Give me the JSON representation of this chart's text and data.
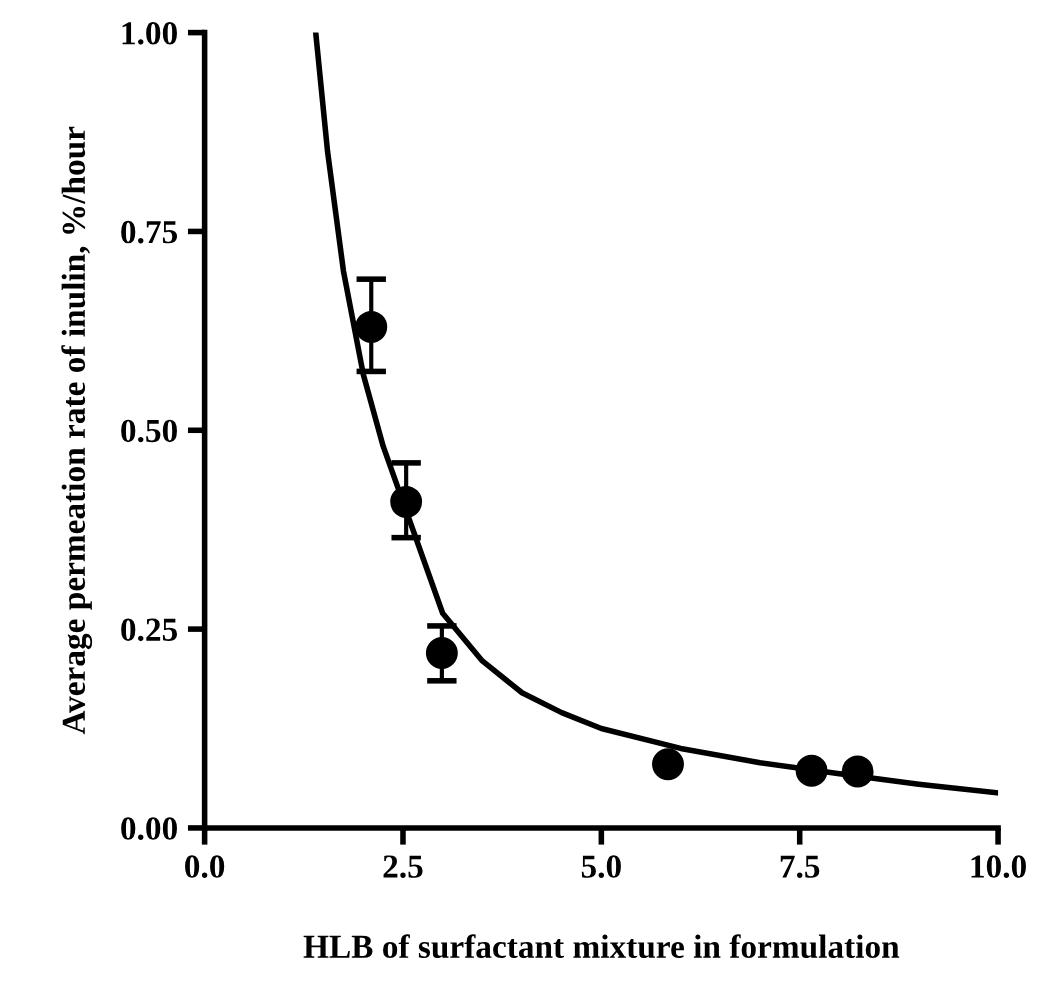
{
  "chart_data": {
    "type": "scatter",
    "xlabel": "HLB of surfactant mixture in formulation",
    "ylabel": "Average permeation rate of inulin, %/hour",
    "xlim": [
      0,
      10
    ],
    "ylim": [
      0,
      1
    ],
    "xticks": [
      {
        "value": 0,
        "label": "0.0"
      },
      {
        "value": 2.5,
        "label": "2.5"
      },
      {
        "value": 5,
        "label": "5.0"
      },
      {
        "value": 7.5,
        "label": "7.5"
      },
      {
        "value": 10,
        "label": "10.0"
      }
    ],
    "yticks": [
      {
        "value": 0,
        "label": "0.00"
      },
      {
        "value": 0.25,
        "label": "0.25"
      },
      {
        "value": 0.5,
        "label": "0.50"
      },
      {
        "value": 0.75,
        "label": "0.75"
      },
      {
        "value": 1,
        "label": "1.00"
      }
    ],
    "grid": false,
    "marker": "circle",
    "series": [
      {
        "color": "#000000",
        "x": [
          2.1,
          2.54,
          2.99,
          5.84,
          7.65,
          8.23
        ],
        "values": [
          0.63,
          0.41,
          0.22,
          0.08,
          0.072,
          0.071
        ],
        "errors": [
          [
            0.574,
            0.69
          ],
          [
            0.365,
            0.459
          ],
          [
            0.185,
            0.254
          ],
          null,
          null,
          null
        ]
      },
      {
        "type": "line",
        "color": "#000000",
        "marker": "none",
        "line_style": "solid",
        "x": [
          1.4,
          1.55,
          1.75,
          2.0,
          2.25,
          2.5,
          3.0,
          3.5,
          4.0,
          4.5,
          5.0,
          6.0,
          7.0,
          8.0,
          9.0,
          10.0
        ],
        "values": [
          1.0,
          0.85,
          0.7,
          0.57,
          0.48,
          0.41,
          0.27,
          0.21,
          0.17,
          0.145,
          0.125,
          0.1,
          0.082,
          0.068,
          0.055,
          0.044
        ]
      }
    ]
  }
}
